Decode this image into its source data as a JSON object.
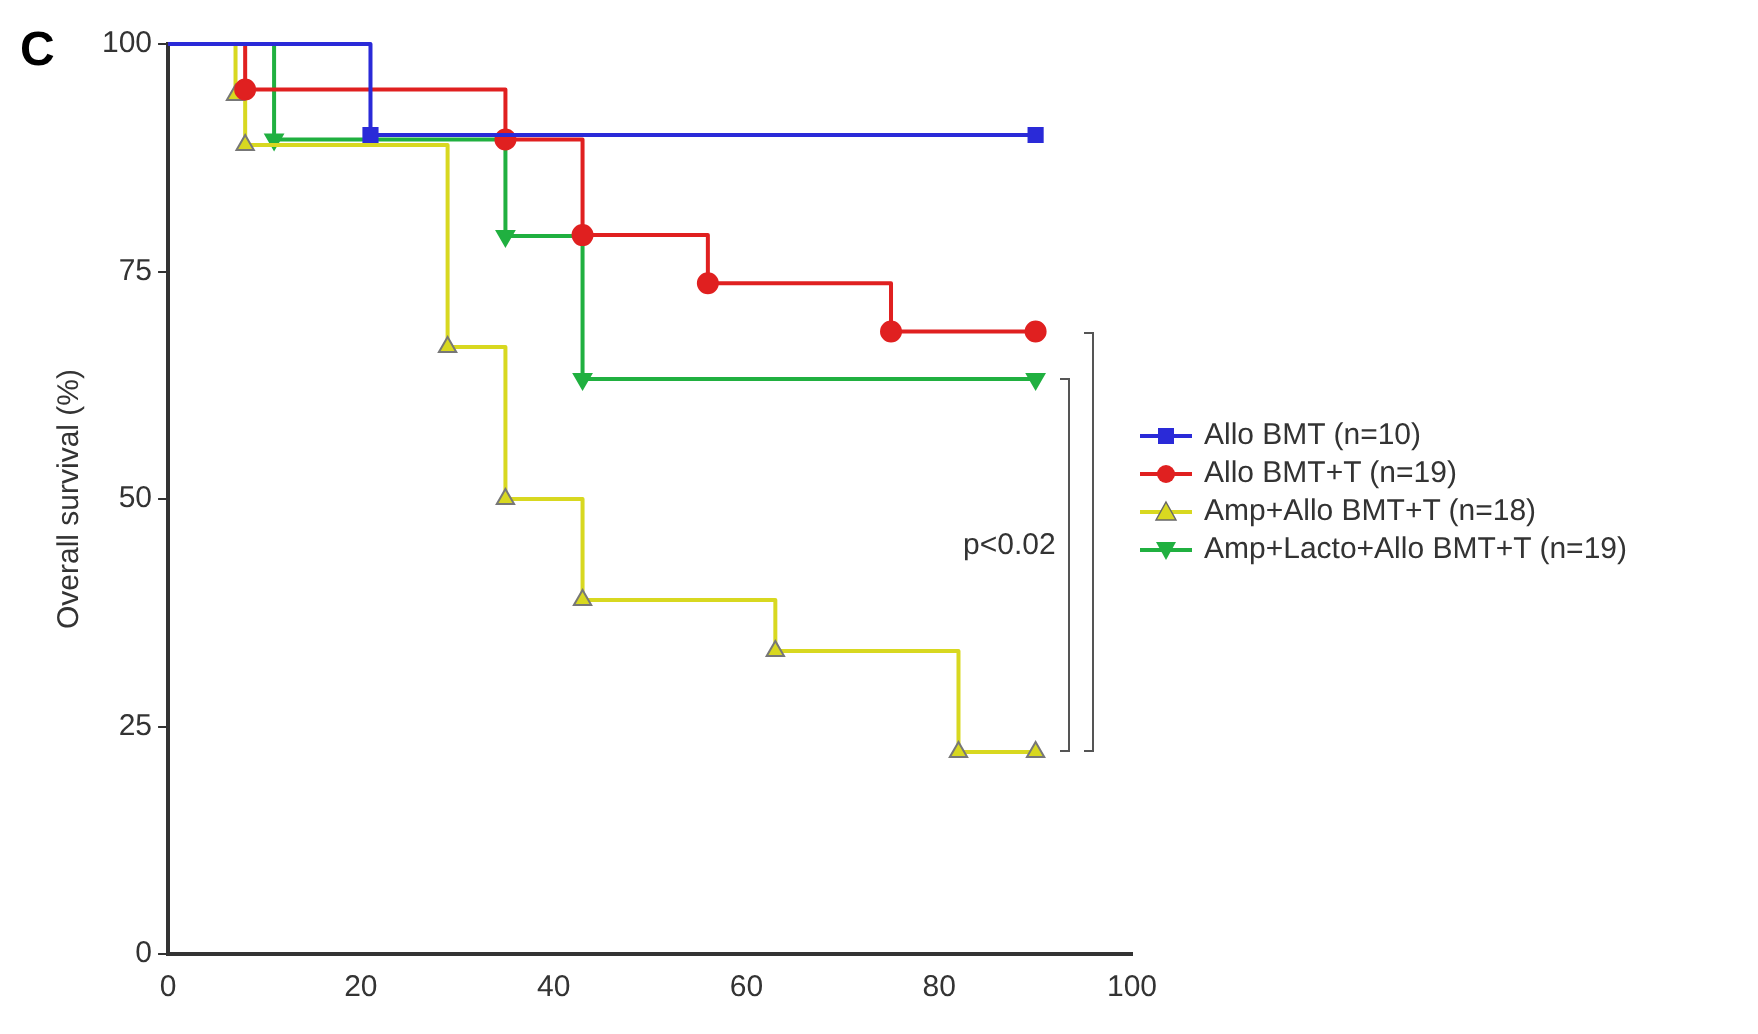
{
  "chart_data": {
    "type": "step",
    "ylabel": "Overall survival (%)",
    "annotations": [
      "C",
      "p<0.02"
    ],
    "xlim": [
      0,
      100
    ],
    "xticks": [
      0,
      20,
      40,
      60,
      80,
      100
    ],
    "ylim": [
      0,
      100
    ],
    "yticks": [
      0,
      25,
      50,
      75,
      100
    ],
    "grid": false,
    "legend": "right",
    "series": [
      {
        "name": "Allo BMT (n=10)",
        "color": "#2a2ad8",
        "marker": "square",
        "x": [
          0,
          21,
          90
        ],
        "values": [
          100,
          90,
          90
        ]
      },
      {
        "name": "Allo BMT+T (n=19)",
        "color": "#e02020",
        "marker": "circle",
        "x": [
          0,
          8,
          35,
          43,
          56,
          75,
          90
        ],
        "values": [
          100,
          95,
          89.5,
          79,
          73.7,
          68.4,
          68.4
        ]
      },
      {
        "name": "Amp+Allo BMT+T (n=18)",
        "color": "#d8d820",
        "marker": "triangle",
        "x": [
          0,
          7,
          8,
          29,
          35,
          43,
          63,
          82,
          90
        ],
        "values": [
          100,
          94.4,
          88.9,
          66.7,
          50,
          38.9,
          33.3,
          22.2,
          22.2
        ]
      },
      {
        "name": "Amp+Lacto+Allo BMT+T (n=19)",
        "color": "#20b040",
        "marker": "triangle-down",
        "x": [
          0,
          11,
          35,
          43,
          90
        ],
        "values": [
          100,
          89.5,
          78.9,
          63.2,
          63.2
        ]
      }
    ]
  }
}
